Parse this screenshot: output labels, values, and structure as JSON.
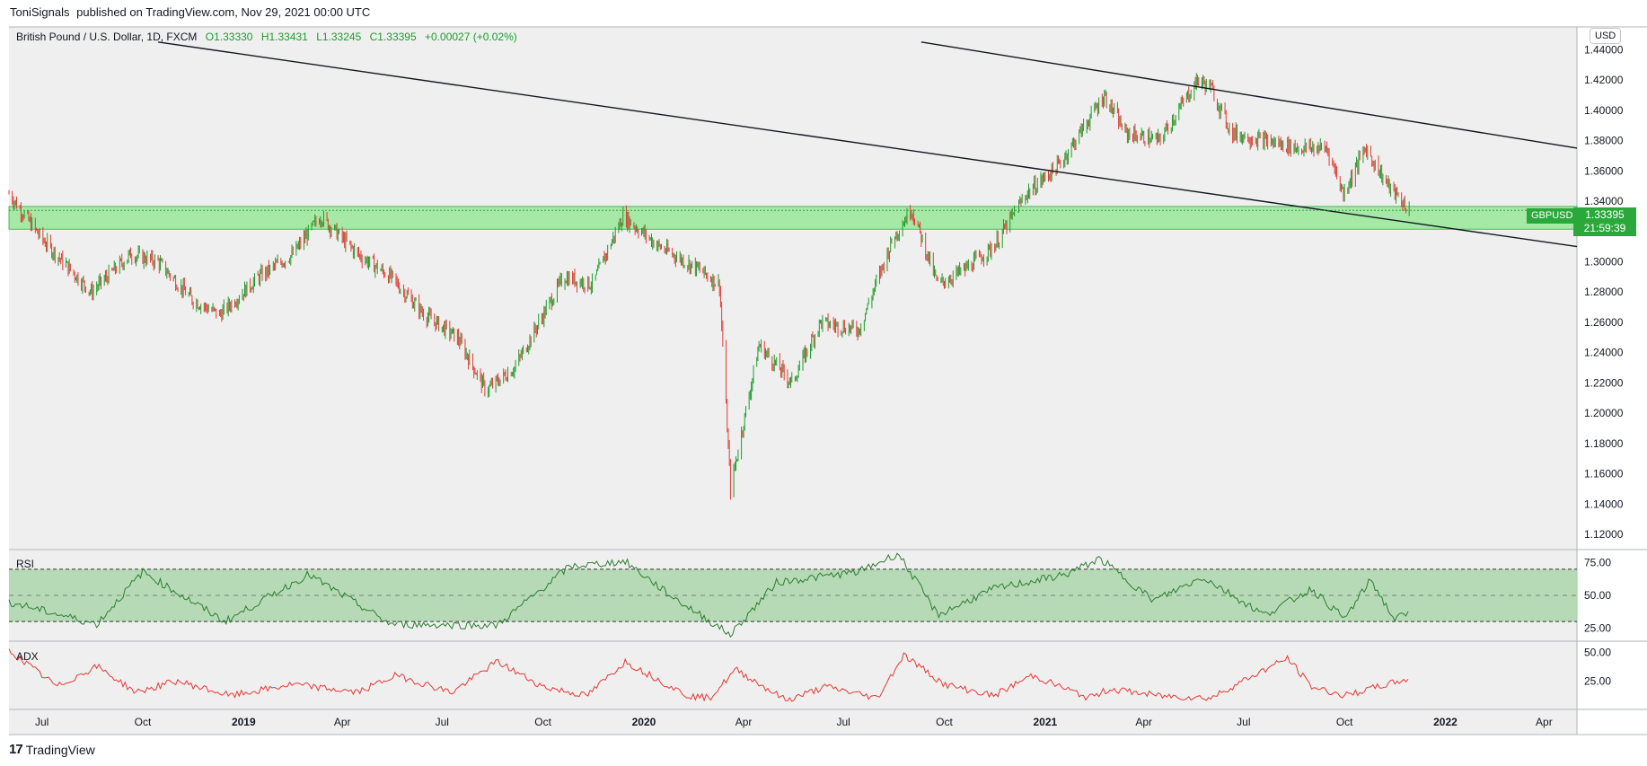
{
  "caption": {
    "author": "ToniSignals",
    "text": "published on TradingView.com, Nov 29, 2021 00:00 UTC"
  },
  "legend": {
    "symbol": "British Pound / U.S. Dollar, 1D, FXCM",
    "open": "O1.33330",
    "high": "H1.33431",
    "low": "L1.33245",
    "close": "C1.33395",
    "change": "+0.00027 (+0.02%)"
  },
  "currency": "USD",
  "price_tag": {
    "symbol": "GBPUSD",
    "price": "1.33395",
    "countdown": "21:59:39"
  },
  "panes": {
    "rsi_label": "RSI",
    "adx_label": "ADX"
  },
  "footer": {
    "brand": "TradingView"
  },
  "colors": {
    "up": "#1a9e2a",
    "down": "#e53935",
    "zone": "#8de68d",
    "rsi_band": "#a8d4a8",
    "adx": "#e53935",
    "rsi_line": "#2e7d32",
    "bg": "#efefef"
  },
  "chart_data": [
    {
      "type": "line",
      "title": "British Pound / U.S. Dollar, 1D, FXCM",
      "xlabel": "",
      "ylabel": "",
      "x_ticks": [
        "Jul",
        "Oct",
        "2019",
        "Apr",
        "Jul",
        "Oct",
        "2020",
        "Apr",
        "Jul",
        "Oct",
        "2021",
        "Apr",
        "Jul",
        "Oct",
        "2022",
        "Apr"
      ],
      "y_ticks": [
        "1.44000",
        "1.42000",
        "1.40000",
        "1.38000",
        "1.36000",
        "1.34000",
        "1.32000",
        "1.30000",
        "1.28000",
        "1.26000",
        "1.24000",
        "1.22000",
        "1.20000",
        "1.18000",
        "1.16000",
        "1.14000",
        "1.12000"
      ],
      "ylim": [
        1.11,
        1.455
      ],
      "xlim": [
        "2018-06-01",
        "2022-05-01"
      ],
      "series": [
        {
          "name": "GBPUSD",
          "x": [
            "2018-06-01",
            "2018-07-01",
            "2018-08-15",
            "2018-09-20",
            "2018-10-15",
            "2018-11-15",
            "2018-12-10",
            "2019-01-15",
            "2019-02-15",
            "2019-03-12",
            "2019-04-15",
            "2019-05-15",
            "2019-06-15",
            "2019-07-15",
            "2019-08-10",
            "2019-09-05",
            "2019-10-20",
            "2019-11-15",
            "2019-12-13",
            "2020-01-15",
            "2020-02-20",
            "2020-03-10",
            "2020-03-20",
            "2020-04-15",
            "2020-05-15",
            "2020-06-10",
            "2020-07-15",
            "2020-08-15",
            "2020-09-01",
            "2020-09-25",
            "2020-10-20",
            "2020-11-15",
            "2020-12-15",
            "2021-01-15",
            "2021-02-24",
            "2021-03-15",
            "2021-04-15",
            "2021-05-20",
            "2021-06-01",
            "2021-06-20",
            "2021-07-20",
            "2021-08-20",
            "2021-09-15",
            "2021-09-30",
            "2021-10-20",
            "2021-11-10",
            "2021-11-29"
          ],
          "values": [
            1.345,
            1.315,
            1.28,
            1.305,
            1.3,
            1.275,
            1.265,
            1.29,
            1.305,
            1.33,
            1.305,
            1.29,
            1.265,
            1.25,
            1.215,
            1.23,
            1.29,
            1.285,
            1.33,
            1.31,
            1.295,
            1.285,
            1.15,
            1.245,
            1.22,
            1.26,
            1.255,
            1.315,
            1.335,
            1.285,
            1.295,
            1.31,
            1.345,
            1.365,
            1.41,
            1.385,
            1.38,
            1.42,
            1.415,
            1.385,
            1.38,
            1.375,
            1.375,
            1.345,
            1.375,
            1.35,
            1.334
          ]
        }
      ],
      "annotations": {
        "support_zone": [
          1.3215,
          1.3365
        ],
        "trendline_lower": [
          [
            "2018-10-15",
            1.445
          ],
          [
            "2022-05-01",
            1.31
          ]
        ],
        "trendline_upper": [
          [
            "2020-09-10",
            1.445
          ],
          [
            "2022-05-01",
            1.375
          ]
        ],
        "last_price": 1.33395
      },
      "grid": false
    },
    {
      "type": "line",
      "title": "RSI",
      "y_ticks": [
        "75.00",
        "50.00",
        "25.00"
      ],
      "ylim": [
        15,
        85
      ],
      "bands": [
        30,
        50,
        70
      ],
      "series": [
        {
          "x": [
            "2018-06-01",
            "2018-08-20",
            "2018-10-01",
            "2018-12-15",
            "2019-03-01",
            "2019-05-15",
            "2019-08-20",
            "2019-10-25",
            "2019-12-15",
            "2020-01-25",
            "2020-03-20",
            "2020-05-01",
            "2020-07-15",
            "2020-08-20",
            "2020-09-25",
            "2020-11-15",
            "2021-01-20",
            "2021-02-20",
            "2021-04-10",
            "2021-05-25",
            "2021-07-20",
            "2021-09-01",
            "2021-10-01",
            "2021-10-25",
            "2021-11-15",
            "2021-11-29"
          ],
          "values": [
            45,
            28,
            68,
            30,
            66,
            28,
            27,
            72,
            76,
            50,
            20,
            60,
            68,
            82,
            35,
            55,
            66,
            78,
            46,
            64,
            35,
            55,
            32,
            62,
            32,
            36
          ]
        }
      ]
    },
    {
      "type": "line",
      "title": "ADX",
      "y_ticks": [
        "50.00",
        "25.00"
      ],
      "ylim": [
        0,
        60
      ],
      "series": [
        {
          "x": [
            "2018-06-01",
            "2018-07-15",
            "2018-08-20",
            "2018-09-25",
            "2018-11-01",
            "2018-12-20",
            "2019-02-15",
            "2019-04-15",
            "2019-05-20",
            "2019-07-10",
            "2019-08-20",
            "2019-10-01",
            "2019-11-10",
            "2019-12-15",
            "2020-02-10",
            "2020-03-01",
            "2020-03-25",
            "2020-05-10",
            "2020-06-15",
            "2020-08-01",
            "2020-08-25",
            "2020-10-01",
            "2020-11-15",
            "2020-12-20",
            "2021-02-10",
            "2021-03-01",
            "2021-04-15",
            "2021-06-01",
            "2021-07-10",
            "2021-08-10",
            "2021-09-01",
            "2021-10-01",
            "2021-11-01",
            "2021-11-29"
          ],
          "values": [
            52,
            20,
            38,
            15,
            25,
            12,
            22,
            15,
            30,
            15,
            42,
            20,
            12,
            42,
            12,
            10,
            35,
            8,
            20,
            10,
            48,
            22,
            12,
            30,
            10,
            18,
            12,
            10,
            30,
            45,
            20,
            12,
            20,
            27
          ]
        }
      ]
    }
  ]
}
